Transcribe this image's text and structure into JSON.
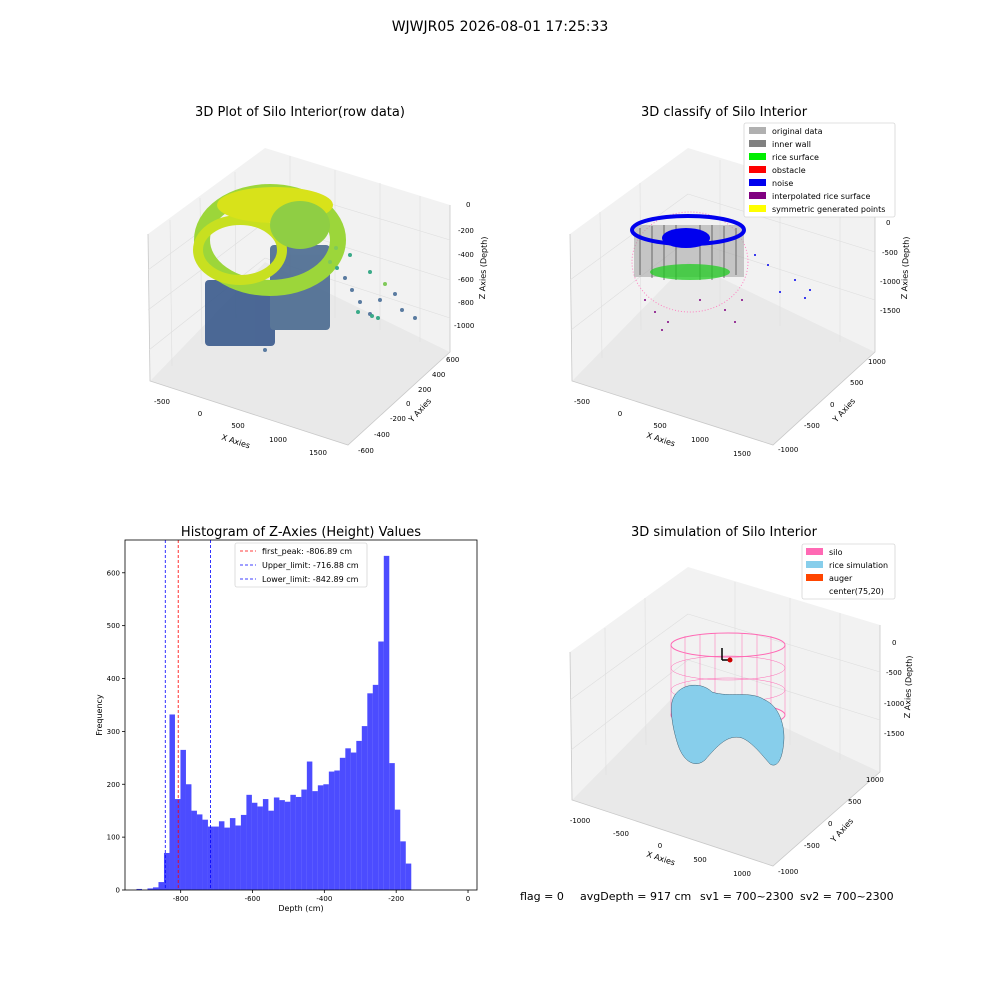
{
  "suptitle": "WJWJR05 2026-08-01 17:25:33",
  "panels": {
    "raw": {
      "title": "3D Plot of Silo Interior(row data)",
      "xlabel": "X Axies",
      "ylabel": "Y Axies",
      "zlabel": "Z Axies (Depth)",
      "xticks": [
        "-500",
        "0",
        "500",
        "1000",
        "1500"
      ],
      "yticks": [
        "600",
        "400",
        "200",
        "0",
        "-200",
        "-400",
        "-600"
      ],
      "zticks": [
        "0",
        "-200",
        "-400",
        "-600",
        "-800",
        "-1000"
      ]
    },
    "classify": {
      "title": "3D classify of Silo Interior",
      "xlabel": "X Axies",
      "ylabel": "Y Axies",
      "zlabel": "Z Axies (Depth)",
      "xticks": [
        "-500",
        "0",
        "500",
        "1000",
        "1500"
      ],
      "yticks": [
        "1000",
        "500",
        "0",
        "-500",
        "-1000"
      ],
      "zticks": [
        "0",
        "-500",
        "-1000",
        "-1500"
      ],
      "legend": [
        {
          "label": "original data",
          "color": "#b0b0b0"
        },
        {
          "label": "inner wall",
          "color": "#808080"
        },
        {
          "label": "rice surface",
          "color": "#00ee00"
        },
        {
          "label": "obstacle",
          "color": "#ff0000"
        },
        {
          "label": "noise",
          "color": "#0000ee"
        },
        {
          "label": "interpolated rice surface",
          "color": "#800080"
        },
        {
          "label": "symmetric generated points",
          "color": "#ffff00"
        }
      ]
    },
    "simulation": {
      "title": "3D simulation of Silo Interior",
      "xlabel": "X Axies",
      "ylabel": "Y Axies",
      "zlabel": "Z Axies (Depth)",
      "xticks": [
        "-1000",
        "-500",
        "0",
        "500",
        "1000"
      ],
      "yticks": [
        "1000",
        "500",
        "0",
        "-500",
        "-1000"
      ],
      "zticks": [
        "0",
        "-500",
        "-1000",
        "-1500"
      ],
      "legend": [
        {
          "label": "silo",
          "color": "#ff69b4"
        },
        {
          "label": "rice simulation",
          "color": "#87ceeb"
        },
        {
          "label": "auger",
          "color": "#ff4500"
        },
        {
          "label": "center(75,20)",
          "color": ""
        }
      ]
    }
  },
  "chart_data": {
    "type": "bar",
    "title": "Histogram of Z-Axies (Height) Values",
    "xlabel": "Depth (cm)",
    "ylabel": "Frequency",
    "xlim": [
      -955,
      25
    ],
    "ylim": [
      0,
      662
    ],
    "xticks": [
      -800,
      -600,
      -400,
      -200,
      0
    ],
    "yticks": [
      0,
      100,
      200,
      300,
      400,
      500,
      600
    ],
    "bin_width": 15.3,
    "bin_start": -923,
    "values": [
      2,
      0,
      3,
      5,
      15,
      70,
      332,
      172,
      265,
      200,
      150,
      143,
      133,
      120,
      120,
      130,
      118,
      136,
      122,
      142,
      180,
      165,
      158,
      172,
      150,
      175,
      170,
      167,
      180,
      176,
      190,
      243,
      187,
      198,
      200,
      224,
      226,
      250,
      268,
      260,
      282,
      310,
      372,
      388,
      470,
      632,
      240,
      152,
      92,
      50
    ],
    "color": "#0000ff",
    "lines": [
      {
        "label": "first_peak: -806.89 cm",
        "x": -806.89,
        "color": "#ff0000"
      },
      {
        "label": "Upper_limit: -716.88 cm",
        "x": -716.88,
        "color": "#0000ff"
      },
      {
        "label": "Lower_limit: -842.89 cm",
        "x": -842.89,
        "color": "#0000ff"
      }
    ]
  },
  "footer": {
    "flag": "flag = 0",
    "avg_depth": "avgDepth = 917 cm",
    "sv1": "sv1 = 700~2300",
    "sv2": "sv2 = 700~2300"
  }
}
